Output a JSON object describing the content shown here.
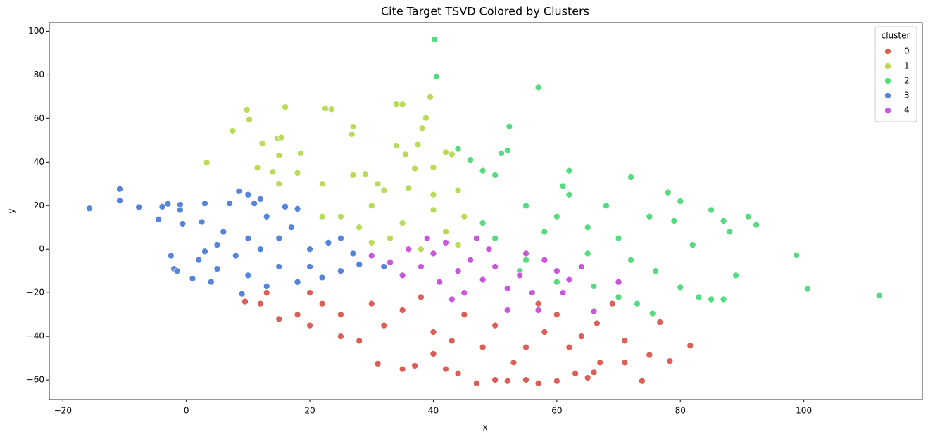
{
  "chart_data": {
    "type": "scatter",
    "title": "Cite Target TSVD Colored by Clusters",
    "x_label": "x",
    "y_label": "y",
    "legend_title": "cluster",
    "legend_position": "upper right",
    "xlim": [
      -22.2,
      119.2
    ],
    "ylim": [
      -69,
      104
    ],
    "xticks": [
      {
        "value": -20,
        "label": "−20"
      },
      0,
      20,
      40,
      60,
      80,
      100
    ],
    "yticks": [
      {
        "value": -60,
        "label": "−60"
      },
      {
        "value": -40,
        "label": "−40"
      },
      {
        "value": -20,
        "label": "−20"
      },
      0,
      20,
      40,
      60,
      80,
      100
    ],
    "series": [
      {
        "name": "0",
        "color": "#db5f57",
        "x": [
          9.5,
          12,
          15,
          13,
          18,
          20,
          22,
          25,
          28,
          31,
          35,
          37,
          40,
          42,
          44,
          47,
          50,
          52,
          55,
          57,
          60,
          63,
          65,
          66,
          67,
          71,
          71,
          73.8,
          75,
          76.7,
          78.3,
          81.6,
          64,
          62,
          60,
          58,
          55,
          50,
          45,
          40,
          35,
          30,
          25,
          20,
          38,
          48,
          53,
          43,
          32,
          57,
          66.5,
          69
        ],
        "y": [
          -24,
          -25,
          -32,
          -20,
          -30,
          -35,
          -25,
          -40,
          -42,
          -52.5,
          -55,
          -53.5,
          -48,
          -55,
          -57,
          -61.5,
          -60,
          -60.5,
          -60,
          -61.5,
          -60.5,
          -57,
          -59,
          -56.5,
          -52,
          -42,
          -52,
          -60.5,
          -48.5,
          -33.5,
          -51.3,
          -44.2,
          -40,
          -45,
          -30,
          -38,
          -45,
          -35,
          -30,
          -38,
          -28,
          -25,
          -30,
          -20,
          -22,
          -45,
          -52,
          -42,
          -35,
          -25,
          -34,
          -25
        ]
      },
      {
        "name": "1",
        "color": "#b9db57",
        "x": [
          3.3,
          7.5,
          9.8,
          10.2,
          11.5,
          12.3,
          14,
          14.8,
          15.4,
          16,
          15,
          15,
          18,
          18.5,
          22.5,
          23.5,
          22,
          27,
          26.8,
          27,
          29,
          31,
          34,
          35,
          34,
          35.5,
          37.5,
          38.2,
          38.8,
          39.5,
          37,
          40,
          42,
          43,
          44,
          32,
          36,
          40,
          25,
          30,
          28,
          33,
          38,
          42,
          45,
          35,
          40,
          30,
          44,
          22
        ],
        "y": [
          39.7,
          54.3,
          64,
          59.4,
          37.4,
          48.5,
          35.5,
          50.8,
          51.2,
          65.2,
          43,
          30,
          35,
          44,
          64.6,
          64.2,
          30,
          56.2,
          52.7,
          34,
          34.5,
          30,
          66.5,
          66.5,
          47.5,
          43.5,
          48,
          55.5,
          60.2,
          69.8,
          37,
          37.5,
          44.5,
          43.5,
          27,
          27,
          28,
          25,
          15,
          20,
          10,
          5,
          0,
          8,
          15,
          12,
          18,
          3,
          2,
          15
        ]
      },
      {
        "name": "2",
        "color": "#57db80",
        "x": [
          40.2,
          40.5,
          57,
          52.3,
          52,
          51,
          44,
          46,
          48,
          50,
          62,
          72,
          61,
          98.8,
          100.6,
          112.2,
          92.3,
          91,
          89,
          87,
          85,
          83,
          80,
          76,
          75.5,
          73,
          70,
          66,
          60,
          55,
          50,
          48,
          55,
          60,
          65,
          70,
          75,
          80,
          78,
          85,
          88,
          82,
          72,
          65,
          58,
          68,
          62,
          54,
          87,
          79
        ],
        "y": [
          96.3,
          79.2,
          74.2,
          56.3,
          45.3,
          44,
          46,
          41,
          36,
          34,
          36,
          33,
          29,
          -2.8,
          -18.2,
          -21.3,
          11.2,
          15,
          -12,
          -23,
          -23,
          -22,
          -17.5,
          -10,
          -29.5,
          -25,
          -22,
          -17,
          -15,
          -5,
          5,
          12,
          20,
          15,
          10,
          5,
          15,
          22,
          26,
          18,
          8,
          2,
          -5,
          -2,
          8,
          20,
          25,
          -10,
          13,
          13
        ]
      },
      {
        "name": "3",
        "color": "#5784db",
        "x": [
          -15.7,
          -10.8,
          -10.8,
          -7.7,
          -4.5,
          -3.9,
          -3,
          -1,
          -1,
          -0.6,
          3,
          2.5,
          7,
          8.5,
          10,
          11,
          12,
          13,
          16,
          18,
          -2.5,
          -2,
          -1.5,
          1,
          4,
          9,
          5,
          8,
          10,
          15,
          18,
          22,
          25,
          28,
          30,
          20,
          15,
          12,
          5,
          2,
          25,
          27,
          32,
          20,
          10,
          6,
          17,
          23,
          13,
          3
        ],
        "y": [
          18.7,
          27.6,
          22.3,
          19.3,
          13.7,
          19.5,
          20.8,
          20.4,
          18,
          11.7,
          21,
          12.5,
          21,
          26.6,
          25,
          21,
          23,
          15,
          19.5,
          18.5,
          -3,
          -9,
          -10,
          -13.5,
          -15,
          -20.5,
          -9,
          -3,
          -12,
          -8,
          -15,
          -13,
          -10,
          -7,
          -3,
          0,
          5,
          0,
          2,
          -5,
          5,
          -2,
          -8,
          -8,
          5,
          8,
          10,
          3,
          -17,
          -1
        ]
      },
      {
        "name": "4",
        "color": "#c957db",
        "x": [
          30,
          33,
          36,
          38,
          40,
          42,
          44,
          46,
          48,
          50,
          52,
          54,
          56,
          58,
          60,
          62,
          64,
          66,
          70,
          52,
          57,
          45,
          35,
          41,
          49,
          55,
          47,
          39,
          43,
          61
        ],
        "y": [
          -3,
          -6,
          0,
          -8,
          -2,
          3,
          -10,
          -5,
          -14,
          -8,
          -18,
          -12,
          -20,
          -5,
          -10,
          -14,
          -8,
          -28.5,
          -15,
          -28,
          -28,
          -20,
          -12,
          -15,
          0,
          -2,
          5,
          5,
          -23,
          -20
        ]
      }
    ]
  }
}
